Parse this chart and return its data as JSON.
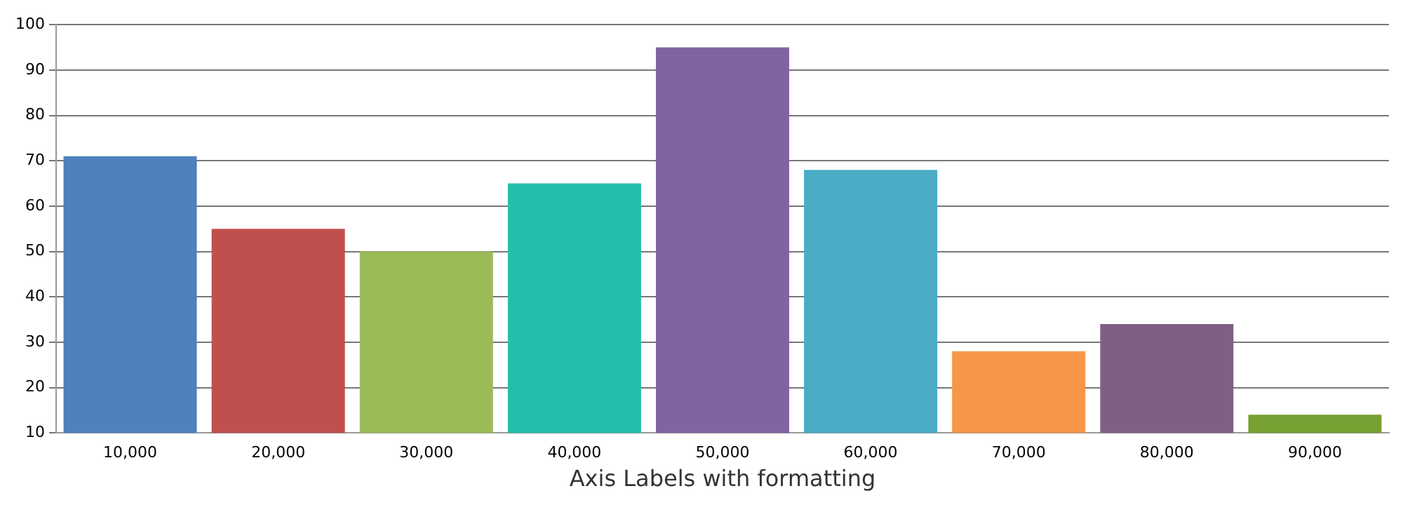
{
  "chart_data": {
    "type": "bar",
    "xlabel": "Axis Labels with formatting",
    "categories": [
      "10,000",
      "20,000",
      "30,000",
      "40,000",
      "50,000",
      "60,000",
      "70,000",
      "80,000",
      "90,000"
    ],
    "values": [
      71,
      55,
      50,
      65,
      95,
      68,
      28,
      34,
      14
    ],
    "colors": [
      "#4f81bc",
      "#c0504e",
      "#9bbb58",
      "#23bfaa",
      "#8064a1",
      "#4aacc5",
      "#f79647",
      "#7f6084",
      "#77a033"
    ],
    "ylim": [
      10,
      100
    ],
    "yticks": [
      10,
      20,
      30,
      40,
      50,
      60,
      70,
      80,
      90,
      100
    ],
    "grid": "y",
    "legend": false
  }
}
